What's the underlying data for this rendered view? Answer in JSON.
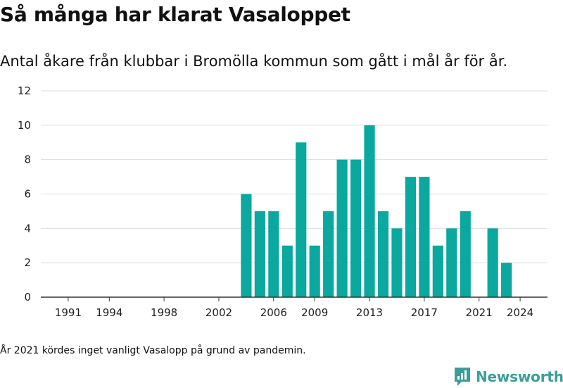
{
  "title": "Så många har klarat Vasaloppet",
  "subtitle": "Antal åkare från klubbar i Bromölla kommun som gått i mål år för år.",
  "footnote": "År 2021 kördes inget vanligt Vasalopp på grund av pandemin.",
  "logo": {
    "text": "Newsworthy",
    "icon": "newsworthy-logo-icon",
    "color": "#3a9e98"
  },
  "chart_data": {
    "type": "bar",
    "title": "Så många har klarat Vasaloppet",
    "subtitle": "Antal åkare från klubbar i Bromölla kommun som gått i mål år för år.",
    "xlabel": "",
    "ylabel": "",
    "x": [
      2004,
      2005,
      2006,
      2007,
      2008,
      2009,
      2010,
      2011,
      2012,
      2013,
      2014,
      2015,
      2016,
      2017,
      2018,
      2019,
      2020,
      2021,
      2022,
      2023
    ],
    "values": [
      6,
      5,
      5,
      3,
      9,
      3,
      5,
      8,
      8,
      10,
      5,
      4,
      7,
      7,
      3,
      4,
      5,
      0,
      4,
      2
    ],
    "xlim": [
      1989,
      2026
    ],
    "ylim": [
      0,
      12
    ],
    "yticks": [
      0,
      2,
      4,
      6,
      8,
      10,
      12
    ],
    "xticks": [
      1991,
      1994,
      1998,
      2002,
      2006,
      2009,
      2013,
      2017,
      2021,
      2024
    ],
    "bar_color": "#0aa89e",
    "grid": true,
    "legend": "none"
  }
}
